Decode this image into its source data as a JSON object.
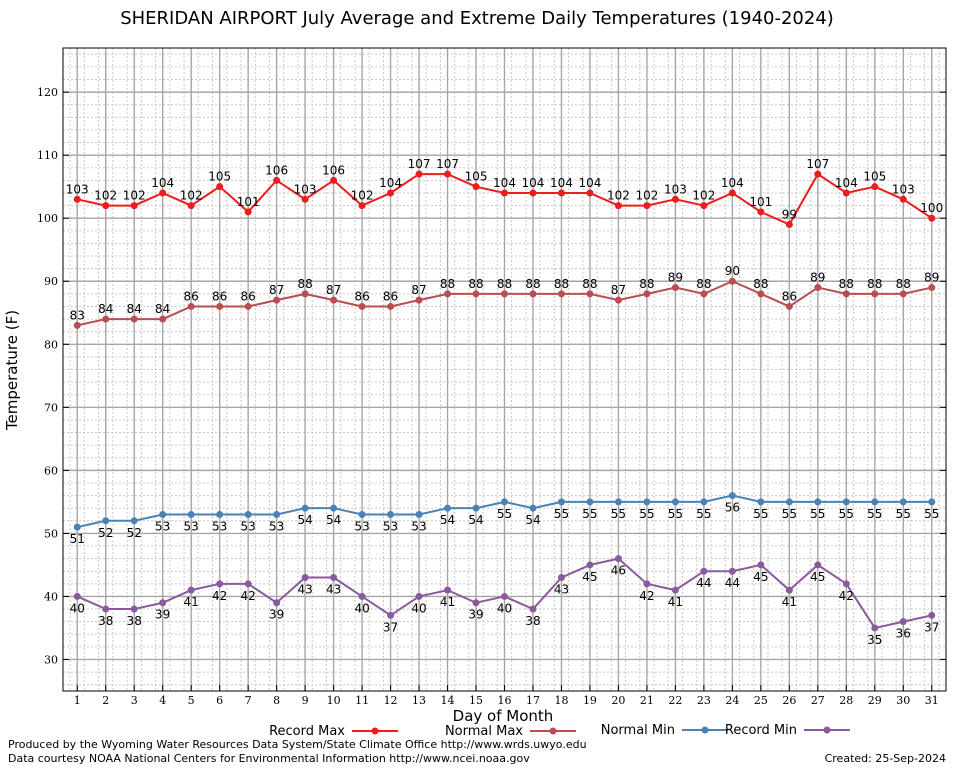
{
  "chart_data": {
    "type": "line",
    "title": "SHERIDAN AIRPORT July Average and Extreme Daily Temperatures (1940-2024)",
    "xlabel": "Day of Month",
    "ylabel": "Temperature (F)",
    "x": [
      1,
      2,
      3,
      4,
      5,
      6,
      7,
      8,
      9,
      10,
      11,
      12,
      13,
      14,
      15,
      16,
      17,
      18,
      19,
      20,
      21,
      22,
      23,
      24,
      25,
      26,
      27,
      28,
      29,
      30,
      31
    ],
    "xlim": [
      0.5,
      31.5
    ],
    "ylim": [
      25,
      127
    ],
    "yticks": [
      30,
      40,
      50,
      60,
      70,
      80,
      90,
      100,
      110,
      120
    ],
    "grid": true,
    "legend_position": "bottom",
    "series": [
      {
        "name": "Record Max",
        "color": "#ee1c1c",
        "values": [
          103,
          102,
          102,
          104,
          102,
          105,
          101,
          106,
          103,
          106,
          102,
          104,
          107,
          107,
          105,
          104,
          104,
          104,
          104,
          102,
          102,
          103,
          102,
          104,
          101,
          99,
          107,
          104,
          105,
          103,
          100
        ]
      },
      {
        "name": "Normal Max",
        "color": "#b84e52",
        "values": [
          83,
          84,
          84,
          84,
          86,
          86,
          86,
          87,
          88,
          87,
          86,
          86,
          87,
          88,
          88,
          88,
          88,
          88,
          88,
          87,
          88,
          89,
          88,
          90,
          88,
          86,
          89,
          88,
          88,
          88,
          89
        ]
      },
      {
        "name": "Normal Min",
        "color": "#4a82b8",
        "values": [
          51,
          52,
          52,
          53,
          53,
          53,
          53,
          53,
          54,
          54,
          53,
          53,
          53,
          54,
          54,
          55,
          54,
          55,
          55,
          55,
          55,
          55,
          55,
          56,
          55,
          55,
          55,
          55,
          55,
          55,
          55
        ]
      },
      {
        "name": "Record Min",
        "color": "#8a5a9e",
        "values": [
          40,
          38,
          38,
          39,
          41,
          42,
          42,
          39,
          43,
          43,
          40,
          37,
          40,
          41,
          39,
          40,
          38,
          43,
          45,
          46,
          42,
          41,
          44,
          44,
          45,
          41,
          45,
          42,
          35,
          36,
          37
        ]
      }
    ]
  },
  "footer": {
    "credit_line_1": "Produced by the Wyoming Water Resources Data System/State Climate Office http://www.wrds.uwyo.edu",
    "credit_line_2": "Data courtesy NOAA National Centers for Environmental Information http://www.ncei.noaa.gov",
    "created": "Created:  25-Sep-2024"
  }
}
